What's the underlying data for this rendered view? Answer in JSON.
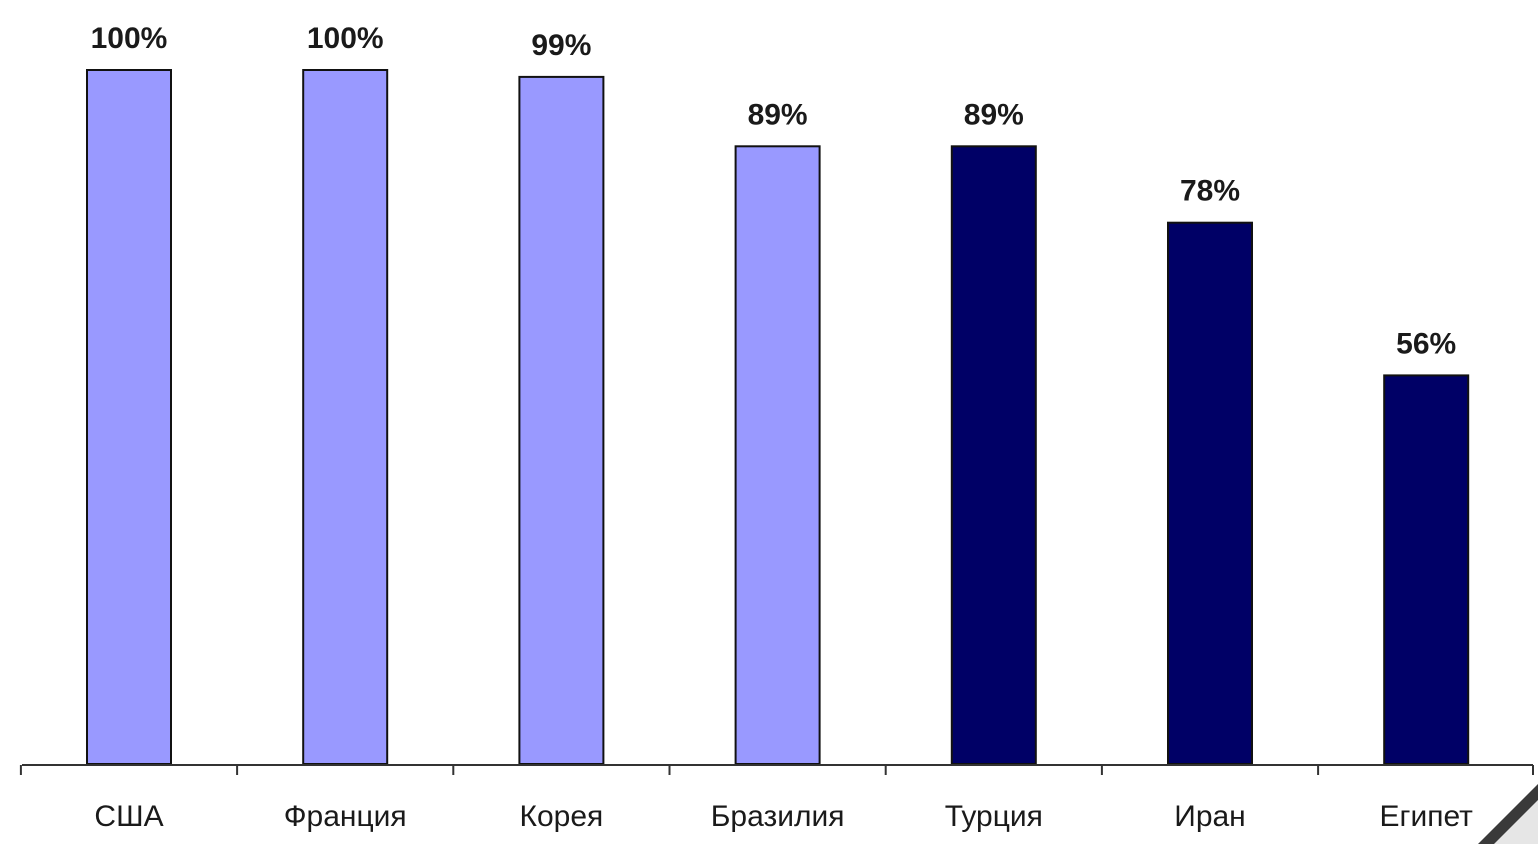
{
  "chart_data": {
    "type": "bar",
    "categories": [
      "США",
      "Франция",
      "Корея",
      "Бразилия",
      "Турция",
      "Иран",
      "Египет"
    ],
    "values": [
      100,
      100,
      99,
      89,
      89,
      78,
      56
    ],
    "value_labels": [
      "100%",
      "100%",
      "99%",
      "89%",
      "89%",
      "78%",
      "56%"
    ],
    "bar_colors": [
      "#9999ff",
      "#9999ff",
      "#9999ff",
      "#9999ff",
      "#000066",
      "#000066",
      "#000066"
    ],
    "ylim": [
      0,
      100
    ],
    "grid": false,
    "title": "",
    "xlabel": "",
    "ylabel": ""
  },
  "colors": {
    "light_bar": "#9999ff",
    "dark_bar": "#000066",
    "axis": "#333333",
    "outline": "#111111"
  }
}
